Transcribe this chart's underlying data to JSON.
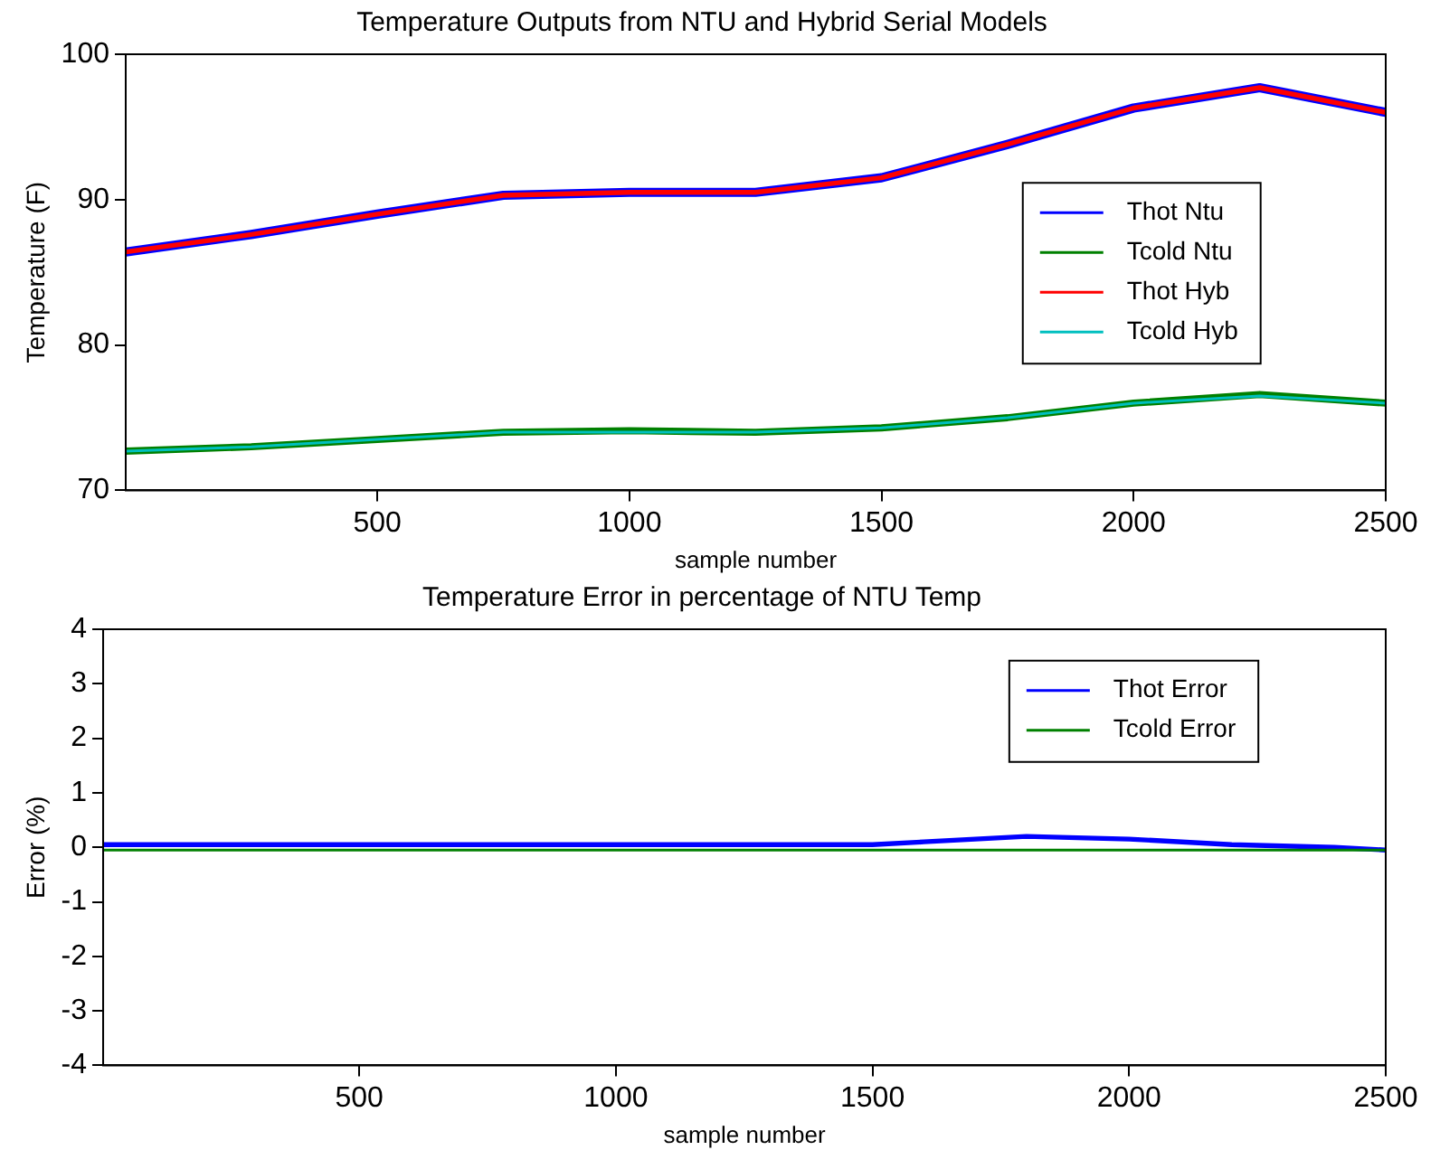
{
  "chart_data": [
    {
      "type": "line",
      "title": "Temperature Outputs from NTU and Hybrid Serial Models",
      "xlabel": "sample number",
      "ylabel": "Temperature (F)",
      "x": [
        1,
        250,
        500,
        750,
        1000,
        1250,
        1500,
        1750,
        2000,
        2250,
        2500
      ],
      "xlim": [
        1,
        2500
      ],
      "xticks": [
        500,
        1000,
        1500,
        2000,
        2500
      ],
      "ylim": [
        70,
        100
      ],
      "yticks": [
        70,
        80,
        90,
        100
      ],
      "legend": "right",
      "series": [
        {
          "name": "Thot Ntu",
          "color": "#0000ff",
          "values": [
            86.4,
            87.6,
            89.0,
            90.3,
            90.5,
            90.5,
            91.5,
            93.8,
            96.3,
            97.7,
            96.0
          ]
        },
        {
          "name": "Tcold Ntu",
          "color": "#008000",
          "values": [
            72.7,
            73.0,
            73.5,
            74.0,
            74.1,
            74.0,
            74.3,
            75.0,
            76.0,
            76.6,
            76.0
          ]
        },
        {
          "name": "Thot Hyb",
          "color": "#ff0000",
          "values": [
            86.4,
            87.6,
            89.0,
            90.3,
            90.5,
            90.5,
            91.5,
            93.8,
            96.3,
            97.7,
            96.0
          ]
        },
        {
          "name": "Tcold Hyb",
          "color": "#00bfbf",
          "values": [
            72.7,
            73.0,
            73.5,
            74.0,
            74.0,
            74.0,
            74.3,
            75.0,
            76.0,
            76.5,
            76.0
          ]
        }
      ]
    },
    {
      "type": "line",
      "title": "Temperature Error in percentage of NTU Temp",
      "xlabel": "sample number",
      "ylabel": "Error (%)",
      "x": [
        1,
        250,
        500,
        750,
        1000,
        1250,
        1500,
        1600,
        1800,
        2000,
        2200,
        2400,
        2500
      ],
      "xlim": [
        1,
        2500
      ],
      "xticks": [
        500,
        1000,
        1500,
        2000,
        2500
      ],
      "ylim": [
        -4,
        4
      ],
      "yticks": [
        -4,
        -3,
        -2,
        -1,
        0,
        1,
        2,
        3,
        4
      ],
      "legend": "top right",
      "series": [
        {
          "name": "Thot Error",
          "color": "#0000ff",
          "values": [
            0.05,
            0.05,
            0.05,
            0.05,
            0.05,
            0.05,
            0.05,
            0.1,
            0.2,
            0.15,
            0.05,
            0.0,
            -0.05
          ]
        },
        {
          "name": "Tcold Error",
          "color": "#008000",
          "values": [
            -0.05,
            -0.05,
            -0.05,
            -0.05,
            -0.05,
            -0.05,
            -0.05,
            -0.05,
            -0.05,
            -0.05,
            -0.05,
            -0.05,
            -0.05
          ]
        }
      ]
    }
  ]
}
